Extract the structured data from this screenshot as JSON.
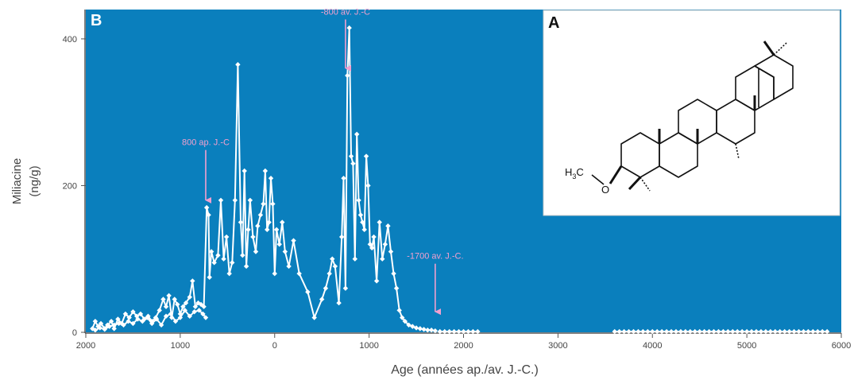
{
  "panel_b_label": "B",
  "panel_a_label": "A",
  "colors": {
    "plot_bg": "#0a7fbd",
    "series": "#ffffff",
    "annotation": "#f2a0cf",
    "axis_text": "#444444"
  },
  "molecule": {
    "methoxy_label": "H3C",
    "methoxy_base": "H",
    "methoxy_sub": "3",
    "methoxy_tail": "C",
    "oxygen_label": "O"
  },
  "chart_data": {
    "type": "line",
    "xlabel": "Age (années ap./av. J.-C.)",
    "ylabel": "Miliacine",
    "yunit": "(ng/g)",
    "xlim": [
      2000,
      -6000
    ],
    "ylim": [
      0,
      440
    ],
    "x_ticks": [
      {
        "value": 2000,
        "label": "2000"
      },
      {
        "value": 1000,
        "label": "1000"
      },
      {
        "value": 0,
        "label": "0"
      },
      {
        "value": -1000,
        "label": "1000"
      },
      {
        "value": -2000,
        "label": "2000"
      },
      {
        "value": -3000,
        "label": "3000"
      },
      {
        "value": -4000,
        "label": "4000"
      },
      {
        "value": -5000,
        "label": "5000"
      },
      {
        "value": -6000,
        "label": "6000"
      }
    ],
    "y_ticks": [
      {
        "value": 0,
        "label": "0"
      },
      {
        "value": 200,
        "label": "200"
      },
      {
        "value": 400,
        "label": "400"
      }
    ],
    "annotations": [
      {
        "text": "800 ap. J.-C",
        "x": 730,
        "y": 180,
        "label_y": 255
      },
      {
        "text": "-800 av. J.-C",
        "x": -750,
        "y": 360,
        "label_y": 433
      },
      {
        "text": "-1700 av. J.-C.",
        "x": -1700,
        "y": 28,
        "label_y": 100
      }
    ],
    "series": [
      {
        "x": [
          1930,
          1900,
          1870,
          1840,
          1800,
          1770,
          1730,
          1700,
          1660,
          1620,
          1580,
          1540,
          1500,
          1460,
          1420,
          1380,
          1340,
          1300,
          1260,
          1220,
          1180,
          1150,
          1120,
          1090,
          1060,
          1030,
          1000,
          970,
          940,
          900,
          870,
          840,
          810,
          780,
          750,
          720,
          700,
          690,
          670,
          640,
          600,
          570,
          540,
          510,
          480,
          450,
          420,
          390,
          360,
          340,
          320,
          300,
          280,
          260,
          230,
          200,
          180,
          150,
          120,
          100,
          80,
          60,
          40,
          20,
          0,
          -20,
          -50,
          -80,
          -110,
          -150,
          -200,
          -260,
          -350,
          -420,
          -500,
          -540,
          -580,
          -610,
          -640,
          -680,
          -710,
          -730,
          -750,
          -770,
          -790,
          -810,
          -830,
          -850,
          -870,
          -890,
          -910,
          -930,
          -950,
          -970,
          -990,
          -1010,
          -1030,
          -1050,
          -1080,
          -1110,
          -1140,
          -1170,
          -1200,
          -1230,
          -1260,
          -1290,
          -1320,
          -1350,
          -1380,
          -1420,
          -1460,
          -1500,
          -1540,
          -1580,
          -1620,
          -1660,
          -1700
        ],
        "y": [
          5,
          15,
          8,
          12,
          5,
          10,
          15,
          5,
          18,
          12,
          25,
          20,
          28,
          22,
          25,
          18,
          22,
          15,
          20,
          30,
          45,
          35,
          50,
          20,
          45,
          38,
          25,
          35,
          40,
          48,
          70,
          35,
          40,
          38,
          35,
          170,
          160,
          75,
          110,
          95,
          105,
          180,
          100,
          130,
          80,
          95,
          180,
          365,
          150,
          105,
          220,
          90,
          140,
          180,
          130,
          110,
          145,
          160,
          175,
          220,
          140,
          150,
          210,
          175,
          80,
          140,
          120,
          150,
          110,
          90,
          125,
          80,
          55,
          20,
          45,
          60,
          80,
          100,
          90,
          40,
          130,
          210,
          60,
          350,
          415,
          240,
          230,
          100,
          270,
          180,
          160,
          150,
          140,
          240,
          200,
          120,
          115,
          130,
          70,
          150,
          100,
          120,
          145,
          110,
          80,
          60,
          30,
          20,
          15,
          10,
          8,
          6,
          5,
          4,
          3,
          3,
          2
        ]
      },
      {
        "x": [
          1900,
          1850,
          1800,
          1750,
          1700,
          1650,
          1600,
          1550,
          1500,
          1450,
          1400,
          1350,
          1300,
          1250,
          1200,
          1150,
          1100,
          1050,
          1000,
          950,
          900,
          850,
          800,
          760,
          730
        ],
        "y": [
          3,
          6,
          4,
          8,
          10,
          12,
          10,
          15,
          12,
          18,
          15,
          20,
          12,
          18,
          10,
          22,
          25,
          15,
          20,
          30,
          22,
          28,
          30,
          25,
          20
        ]
      },
      {
        "x": [
          -1750,
          -1800,
          -1850,
          -1900,
          -1950,
          -2000,
          -2050,
          -2100,
          -2150
        ],
        "y": [
          1,
          1,
          1,
          1,
          1,
          1,
          1,
          1,
          1
        ]
      },
      {
        "x": [
          -3600,
          -3650,
          -3700,
          -3750,
          -3800,
          -3850,
          -3900,
          -3950,
          -4000,
          -4050,
          -4100,
          -4150,
          -4200,
          -4250,
          -4300,
          -4350,
          -4400,
          -4450,
          -4500,
          -4550,
          -4600,
          -4650,
          -4700,
          -4750,
          -4800,
          -4850,
          -4900,
          -4950,
          -5000,
          -5050,
          -5100,
          -5150,
          -5200,
          -5250,
          -5300,
          -5350,
          -5400,
          -5450,
          -5500,
          -5550,
          -5600,
          -5650,
          -5700,
          -5750,
          -5800,
          -5850
        ],
        "y": [
          1,
          1,
          1,
          1,
          1,
          1,
          1,
          1,
          1,
          1,
          1,
          1,
          1,
          1,
          1,
          1,
          1,
          1,
          1,
          1,
          1,
          1,
          1,
          1,
          1,
          1,
          1,
          1,
          1,
          1,
          1,
          1,
          1,
          1,
          1,
          1,
          1,
          1,
          1,
          1,
          1,
          1,
          1,
          1,
          1,
          1
        ]
      }
    ]
  }
}
